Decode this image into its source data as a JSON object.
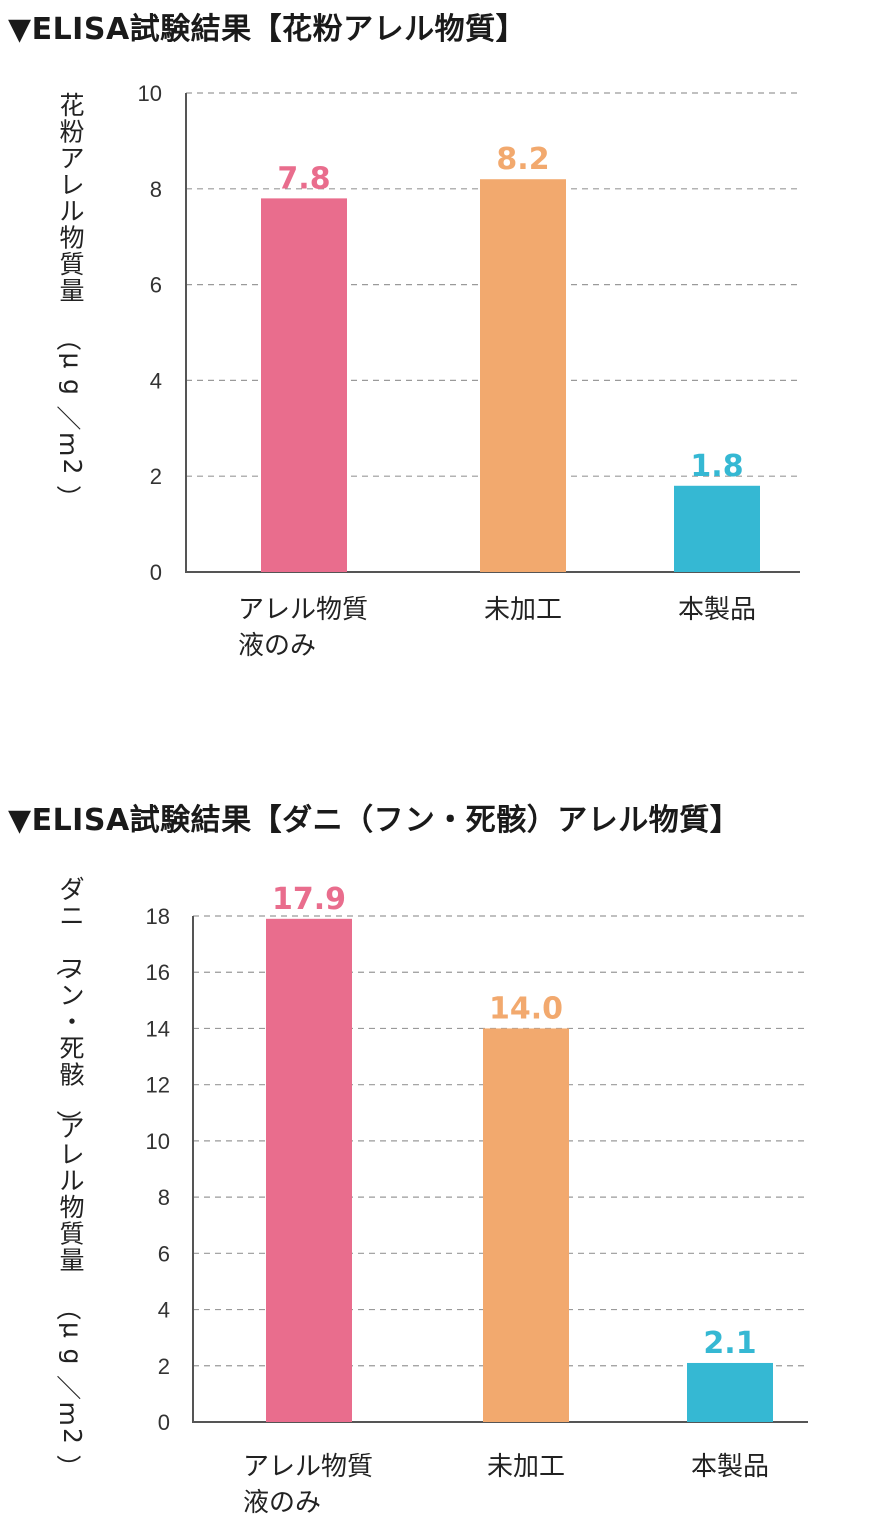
{
  "chart_data": [
    {
      "type": "bar",
      "title": "▼ELISA試験結果【花粉アレル物質】",
      "ylabel": "花粉アレル物質量（μg／m2）",
      "categories": [
        "アレル物質\n液のみ",
        "未加工",
        "本製品"
      ],
      "values": [
        7.8,
        8.2,
        1.8
      ],
      "data_labels": [
        "7.8",
        "8.2",
        "1.8"
      ],
      "colors": [
        "#e96d8d",
        "#f2a96e",
        "#35b8d3"
      ],
      "yticks": [
        0,
        2,
        4,
        6,
        8,
        10
      ],
      "ylim": [
        0,
        10
      ],
      "grid": true
    },
    {
      "type": "bar",
      "title": "▼ELISA試験結果【ダニ（フン・死骸）アレル物質】",
      "ylabel": "ダニ（フン・死骸）アレル物質量（μg／m2）",
      "categories": [
        "アレル物質\n液のみ",
        "未加工",
        "本製品"
      ],
      "values": [
        17.9,
        14.0,
        2.1
      ],
      "data_labels": [
        "17.9",
        "14.0",
        "2.1"
      ],
      "colors": [
        "#e96d8d",
        "#f2a96e",
        "#35b8d3"
      ],
      "yticks": [
        0,
        2,
        4,
        6,
        8,
        10,
        12,
        14,
        16,
        18
      ],
      "ylim": [
        0,
        18
      ],
      "grid": true
    }
  ]
}
